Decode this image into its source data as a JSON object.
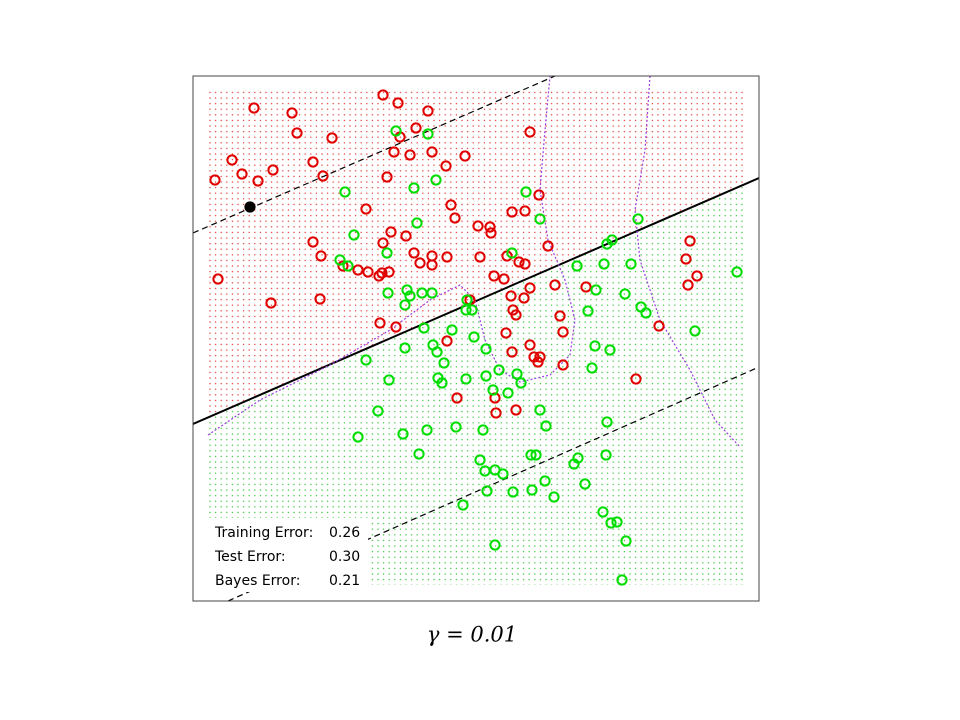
{
  "chart_data": {
    "type": "scatter",
    "xlim": [
      0,
      5.66
    ],
    "ylim": [
      0,
      5.25
    ],
    "series": [
      {
        "color": "#e00000",
        "x": [
          0.61,
          0.99,
          1.04,
          1.39,
          1.9,
          2.05,
          2.35,
          2.23,
          2.07,
          0.39,
          0.49,
          0.22,
          0.65,
          0.8,
          1.2,
          1.3,
          1.94,
          2.17,
          2.01,
          2.39,
          2.53,
          2.72,
          1.73,
          1.98,
          2.13,
          1.9,
          2.58,
          2.62,
          2.85,
          2.97,
          2.98,
          3.19,
          3.32,
          3.46,
          3.55,
          1.2,
          1.28,
          0.25,
          0.78,
          1.27,
          1.5,
          1.65,
          1.75,
          1.89,
          1.86,
          1.96,
          2.21,
          2.27,
          2.39,
          2.54,
          2.39,
          2.87,
          3.14,
          3.26,
          3.32,
          3.01,
          3.11,
          3.37,
          3.18,
          3.31,
          2.77,
          3.2,
          3.23,
          3.62,
          3.93,
          3.67,
          3.13,
          3.37,
          3.19,
          3.41,
          3.47,
          3.45,
          3.7,
          3.7,
          2.54,
          1.87,
          2.03,
          2.64,
          3.02,
          3.03,
          3.23,
          4.97,
          4.93,
          5.04,
          4.95,
          4.66,
          4.43,
          3.37
        ],
        "y": [
          4.93,
          4.88,
          4.68,
          4.63,
          5.06,
          4.98,
          4.9,
          4.73,
          4.64,
          4.41,
          4.27,
          4.21,
          4.2,
          4.31,
          4.39,
          4.25,
          4.24,
          4.46,
          4.49,
          4.49,
          4.35,
          4.45,
          3.92,
          3.69,
          3.65,
          3.58,
          3.96,
          3.83,
          3.75,
          3.74,
          3.68,
          3.89,
          3.9,
          4.06,
          3.55,
          3.59,
          3.45,
          3.22,
          2.98,
          3.02,
          3.35,
          3.31,
          3.29,
          3.28,
          3.25,
          3.29,
          3.48,
          3.38,
          3.45,
          3.44,
          3.36,
          3.44,
          3.45,
          3.39,
          3.37,
          3.25,
          3.22,
          3.13,
          3.05,
          3.03,
          3.01,
          2.91,
          2.86,
          3.16,
          3.14,
          2.85,
          2.68,
          2.56,
          2.49,
          2.44,
          2.44,
          2.39,
          2.69,
          2.36,
          2.6,
          2.78,
          2.74,
          2.03,
          2.03,
          1.88,
          1.91,
          3.6,
          3.42,
          3.25,
          3.16,
          2.75,
          2.22,
          4.69
        ]
      },
      {
        "color": "#00dd00",
        "x": [
          2.03,
          2.35,
          1.52,
          2.43,
          2.21,
          1.61,
          1.94,
          2.24,
          1.47,
          1.55,
          3.33,
          3.47,
          3.19,
          3.84,
          4.11,
          4.14,
          4.19,
          4.45,
          4.38,
          4.32,
          4.48,
          4.53,
          4.03,
          3.95,
          5.02,
          5.44,
          1.95,
          2.14,
          2.29,
          2.17,
          2.39,
          2.12,
          2.31,
          2.73,
          2.79,
          2.74,
          2.59,
          2.4,
          2.44,
          2.12,
          1.73,
          2.51,
          2.93,
          2.81,
          1.96,
          2.45,
          2.49,
          2.73,
          3.06,
          3.24,
          2.93,
          3.0,
          3.15,
          3.28,
          3.47,
          3.53,
          3.99,
          4.02,
          4.17,
          4.14,
          1.85,
          1.65,
          2.1,
          2.34,
          2.63,
          2.9,
          2.26,
          2.87,
          2.92,
          3.02,
          3.1,
          3.38,
          3.43,
          3.81,
          3.85,
          4.13,
          3.52,
          3.39,
          3.2,
          2.94,
          3.61,
          3.92,
          2.7,
          4.1,
          4.18,
          4.24,
          4.33,
          3.02,
          4.29
        ],
        "y": [
          4.7,
          4.67,
          4.09,
          4.21,
          4.13,
          3.66,
          3.48,
          3.78,
          3.41,
          3.35,
          4.09,
          3.82,
          3.48,
          3.35,
          3.37,
          3.57,
          3.61,
          3.82,
          3.37,
          3.07,
          2.94,
          2.88,
          3.11,
          2.9,
          2.7,
          3.29,
          3.08,
          3.11,
          3.08,
          3.05,
          3.08,
          2.96,
          2.73,
          2.91,
          2.91,
          3.01,
          2.71,
          2.56,
          2.49,
          2.53,
          2.41,
          2.38,
          2.52,
          2.64,
          2.21,
          2.23,
          2.18,
          2.22,
          2.31,
          2.27,
          2.25,
          2.11,
          2.08,
          2.18,
          1.91,
          1.75,
          2.33,
          2.55,
          2.51,
          1.79,
          1.9,
          1.64,
          1.67,
          1.71,
          1.74,
          1.71,
          1.47,
          1.41,
          1.3,
          1.31,
          1.27,
          1.46,
          1.46,
          1.37,
          1.43,
          1.46,
          1.2,
          1.11,
          1.09,
          1.1,
          1.04,
          1.17,
          0.96,
          0.89,
          0.78,
          0.79,
          0.6,
          0.56,
          0.21
        ]
      },
      {
        "color": "#000000",
        "filled": true,
        "x": [
          0.57
        ],
        "y": [
          3.94
        ]
      }
    ],
    "lines": [
      {
        "style": "solid",
        "color": "#000000",
        "x": [
          0,
          5.66
        ],
        "y": [
          1.77,
          4.23
        ]
      },
      {
        "style": "dashed",
        "color": "#000000",
        "x": [
          0,
          3.62
        ],
        "y": [
          3.68,
          5.25
        ]
      },
      {
        "style": "dashed",
        "color": "#000000",
        "x": [
          0.35,
          5.66
        ],
        "y": [
          0,
          2.34
        ]
      },
      {
        "style": "dotted",
        "color": "#9a3de0",
        "x": [
          0.15,
          0.67,
          1.37,
          1.97,
          2.37,
          2.67,
          2.82,
          2.92,
          3.07,
          3.27,
          3.57,
          3.77,
          3.82,
          3.72,
          3.55,
          3.47,
          3.52,
          3.57
        ],
        "y": [
          1.66,
          2.01,
          2.36,
          2.71,
          3.01,
          3.16,
          3.01,
          2.61,
          2.31,
          2.19,
          2.26,
          2.46,
          2.81,
          3.21,
          3.61,
          4.11,
          4.71,
          5.25
        ]
      },
      {
        "style": "dotted",
        "color": "#9a3de0",
        "x": [
          4.57,
          4.52,
          4.42,
          4.47,
          4.67,
          4.97,
          5.22,
          5.47
        ],
        "y": [
          5.25,
          4.51,
          3.91,
          3.41,
          2.81,
          2.31,
          1.81,
          1.54
        ]
      }
    ],
    "errors": [
      {
        "label": "Training Error:",
        "value": "0.26"
      },
      {
        "label": "Test Error:",
        "value": "0.30"
      },
      {
        "label": "Bayes Error:",
        "value": "0.21"
      }
    ],
    "caption": "γ = 0.01"
  }
}
